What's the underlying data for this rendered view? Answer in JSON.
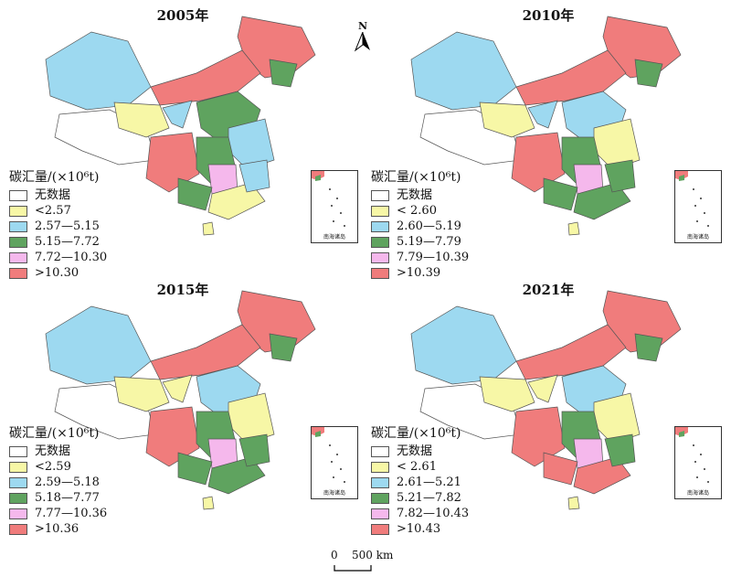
{
  "colors": {
    "nodata": "#ffffff",
    "c1": "#f7f7a6",
    "c2": "#9dd9f0",
    "c3": "#5fa35f",
    "c4": "#f5b8ec",
    "c5": "#f07c7c"
  },
  "legend_title": "碳汇量/(×10⁶t)",
  "nodata_label": "无数据",
  "panels": [
    {
      "year": "2005年",
      "legend": [
        "<2.57",
        "2.57—5.15",
        "5.15—7.72",
        "7.72—10.30",
        ">10.30"
      ]
    },
    {
      "year": "2010年",
      "legend": [
        "< 2.60",
        "2.60—5.19",
        "5.19—7.79",
        "7.79—10.39",
        ">10.39"
      ]
    },
    {
      "year": "2015年",
      "legend": [
        "<2.59",
        "2.59—5.18",
        "5.18—7.77",
        "7.77—10.36",
        ">10.36"
      ]
    },
    {
      "year": "2021年",
      "legend": [
        "< 2.61",
        "2.61—5.21",
        "5.21—7.82",
        "7.82—10.43",
        ">10.43"
      ]
    }
  ],
  "inset_label": "南海诸岛",
  "north_label": "N",
  "scale": {
    "zero": "0",
    "value": "500 km"
  }
}
